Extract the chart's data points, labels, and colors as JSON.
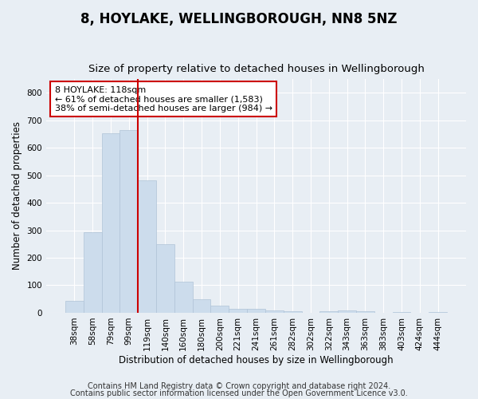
{
  "title1": "8, HOYLAKE, WELLINGBOROUGH, NN8 5NZ",
  "title2": "Size of property relative to detached houses in Wellingborough",
  "xlabel": "Distribution of detached houses by size in Wellingborough",
  "ylabel": "Number of detached properties",
  "categories": [
    "38sqm",
    "58sqm",
    "79sqm",
    "99sqm",
    "119sqm",
    "140sqm",
    "160sqm",
    "180sqm",
    "200sqm",
    "221sqm",
    "241sqm",
    "261sqm",
    "282sqm",
    "302sqm",
    "322sqm",
    "343sqm",
    "363sqm",
    "383sqm",
    "403sqm",
    "424sqm",
    "444sqm"
  ],
  "values": [
    43,
    293,
    651,
    663,
    480,
    250,
    113,
    50,
    26,
    14,
    14,
    8,
    5,
    0,
    7,
    8,
    5,
    0,
    4,
    0,
    4
  ],
  "bar_color": "#ccdcec",
  "bar_edgecolor": "#b0c4d8",
  "vline_index": 3,
  "vline_color": "#cc0000",
  "annotation_line1": "8 HOYLAKE: 118sqm",
  "annotation_line2": "← 61% of detached houses are smaller (1,583)",
  "annotation_line3": "38% of semi-detached houses are larger (984) →",
  "annotation_box_color": "#ffffff",
  "annotation_box_edgecolor": "#cc0000",
  "ylim": [
    0,
    850
  ],
  "yticks": [
    0,
    100,
    200,
    300,
    400,
    500,
    600,
    700,
    800
  ],
  "background_color": "#e8eef4",
  "plot_bg_color": "#e8eef4",
  "grid_color": "#ffffff",
  "footer1": "Contains HM Land Registry data © Crown copyright and database right 2024.",
  "footer2": "Contains public sector information licensed under the Open Government Licence v3.0.",
  "title1_fontsize": 12,
  "title2_fontsize": 9.5,
  "tick_fontsize": 7.5,
  "label_fontsize": 8.5,
  "annotation_fontsize": 8,
  "footer_fontsize": 7
}
